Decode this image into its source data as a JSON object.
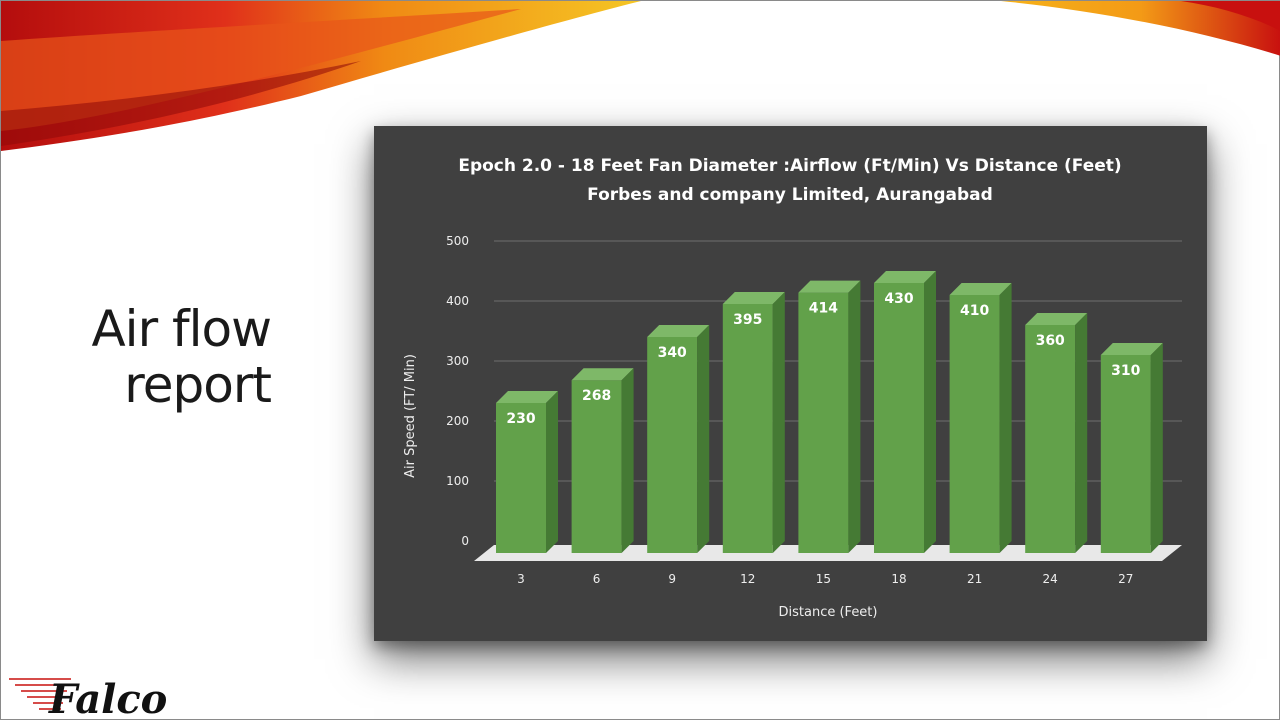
{
  "slide": {
    "title": "Air flow report",
    "brand": "Falco"
  },
  "colors": {
    "panel_background": "#404040",
    "bar_front": "#62a14a",
    "bar_top": "#7eb868",
    "bar_side": "#457a34",
    "gridline": "#6e6e6e",
    "floor": "#e8e8e8",
    "swoosh_red": "#c8100f",
    "swoosh_orange": "#f07a10",
    "swoosh_yellow": "#f3c21a"
  },
  "chart_data": {
    "type": "bar",
    "title": "Epoch 2.0 - 18 Feet Fan Diameter :Airflow (Ft/Min) Vs Distance (Feet)",
    "subtitle": "Forbes and company Limited, Aurangabad",
    "xlabel": "Distance (Feet)",
    "ylabel": "Air Speed (FT/ Min)",
    "categories": [
      "3",
      "6",
      "9",
      "12",
      "15",
      "18",
      "21",
      "24",
      "27"
    ],
    "values": [
      230,
      268,
      340,
      395,
      414,
      430,
      410,
      360,
      310
    ],
    "data_labels": [
      "230",
      "268",
      "340",
      "395",
      "414",
      "430",
      "410",
      "360",
      "310"
    ],
    "ylim": [
      0,
      500
    ],
    "yticks": [
      "0",
      "100",
      "200",
      "300",
      "400",
      "500"
    ],
    "grid": true,
    "legend": "none",
    "style": "3d-column"
  }
}
